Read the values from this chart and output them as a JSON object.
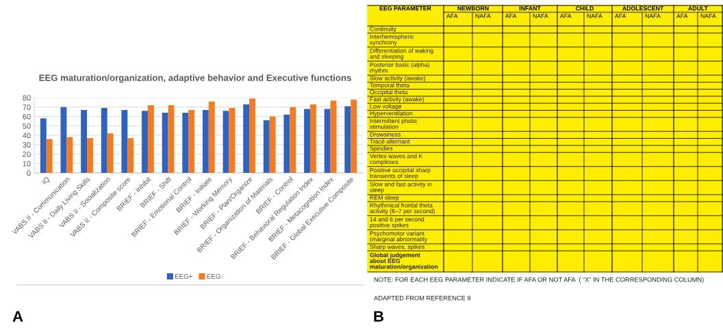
{
  "chart_data": [
    {
      "type": "bar",
      "title": "EEG maturation/organization, adaptive behavior and Executive functions",
      "categories": [
        "IQ",
        "VABS II - Communication",
        "VABS II - Daily Living Skills",
        "VABS II - Socialization",
        "VABS II - Composite score",
        "BRIEF - Inhibit",
        "BRIEF - Shift",
        "BRIEF - Emotional Control",
        "BRIEF - Initiate",
        "BRIEF - Working Memory",
        "BRIEF - Plan/Organize",
        "BRIEF - Organization of Materials",
        "BRIEF - Control",
        "BRIEF - Behavioral Regulation Index",
        "BRIEF - Metacognition Index",
        "BRIEF - Global Executive Composite"
      ],
      "series": [
        {
          "name": "EEG+",
          "color": "#2e63c0",
          "values": [
            58,
            70,
            67,
            69,
            67,
            66,
            64,
            64,
            67,
            66,
            73,
            56,
            62,
            68,
            68,
            71
          ]
        },
        {
          "name": "EEG-",
          "color": "#f47b20",
          "values": [
            36,
            38,
            37,
            42,
            37,
            72,
            72,
            67,
            76,
            69,
            79,
            60,
            70,
            73,
            77,
            78
          ]
        }
      ],
      "ylim": [
        0,
        80
      ],
      "yticks": [
        0,
        10,
        20,
        30,
        40,
        50,
        60,
        70,
        80
      ],
      "grid": "y",
      "legend": "bottom",
      "annotations": [
        "A"
      ]
    },
    {
      "type": "other",
      "title": "EEG PARAMETER",
      "categories": [
        "NEWBORN",
        "INFANT",
        "CHILD",
        "ADOLESCENT",
        "ADULT"
      ],
      "y_categories": [
        "Continuity",
        "Interhemispheric\nsynchrony",
        "Differentiation of waking\nand sleeping",
        "Posterior basic (alpha)\nrhythm",
        "Slow activity (awake)",
        "Temporal theta",
        "Occipital theta",
        "Fast activity (awake)",
        "Low voltage",
        "Hyperventilation",
        "Intermittent photic\nstimulation",
        "Drowsiness",
        "Tracé alternant",
        "Spindles",
        "Vertex waves and K\ncomplexes",
        "Positive occipital sharp\ntransients of sleep",
        "Slow and fast activity in\nsleep",
        "REM sleep",
        "Rhythmical frontal theta\nactivity (6–7 per second)",
        "14 and 6 per second\npositive spikes",
        "Psychomotor variant\n(marginal abnormality",
        "Sharp waves, spikes",
        "Global judgement\nabout EEG\nmaturation/organization"
      ],
      "annotations": [
        "AFA",
        "NAFA",
        "NOTE: FOR EACH EEG PARAMETER INDICATE IF AFA OR NOT AFA  ( “X” IN THE CORRESPONDING COLUMN)",
        "ADAPTED FROM REFERENCE 9",
        "B"
      ]
    }
  ]
}
